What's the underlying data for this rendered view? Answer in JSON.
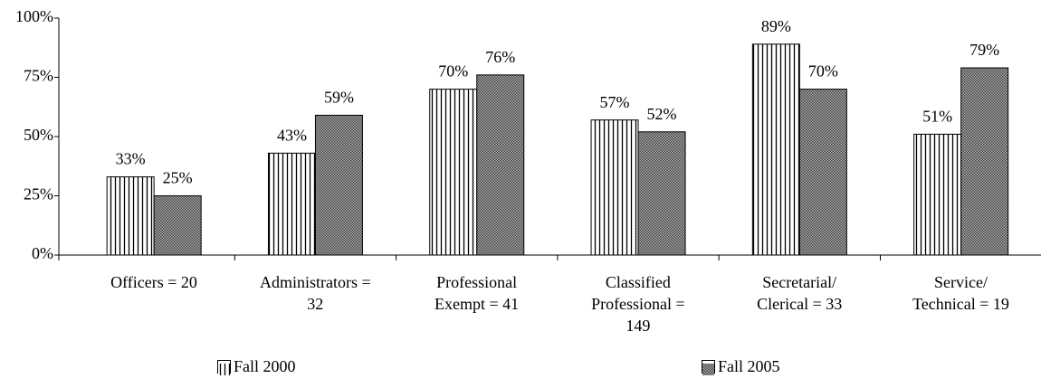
{
  "chart_data": {
    "type": "bar",
    "categories": [
      "Officers = 20",
      "Administrators =\n32",
      "Professional\nExempt = 41",
      "Classified\nProfessional =\n149",
      "Secretarial/\nClerical = 33",
      "Service/\nTechnical = 19"
    ],
    "series": [
      {
        "name": "Fall 2000",
        "color": "#000000",
        "pattern": "vertical-stripes",
        "values": [
          33,
          43,
          70,
          57,
          89,
          51
        ],
        "value_labels": [
          "33%",
          "43%",
          "70%",
          "57%",
          "89%",
          "51%"
        ]
      },
      {
        "name": "Fall 2005",
        "color": "#000000",
        "pattern": "crosshatch",
        "values": [
          25,
          59,
          76,
          52,
          70,
          79
        ],
        "value_labels": [
          "25%",
          "59%",
          "76%",
          "52%",
          "70%",
          "79%"
        ]
      }
    ],
    "ylim": [
      0,
      100
    ],
    "yticks": [
      {
        "value": 0,
        "label": "0%"
      },
      {
        "value": 25,
        "label": "25%"
      },
      {
        "value": 50,
        "label": "50%"
      },
      {
        "value": 75,
        "label": "75%"
      },
      {
        "value": 100,
        "label": "100%"
      }
    ],
    "legend": "bottom"
  }
}
